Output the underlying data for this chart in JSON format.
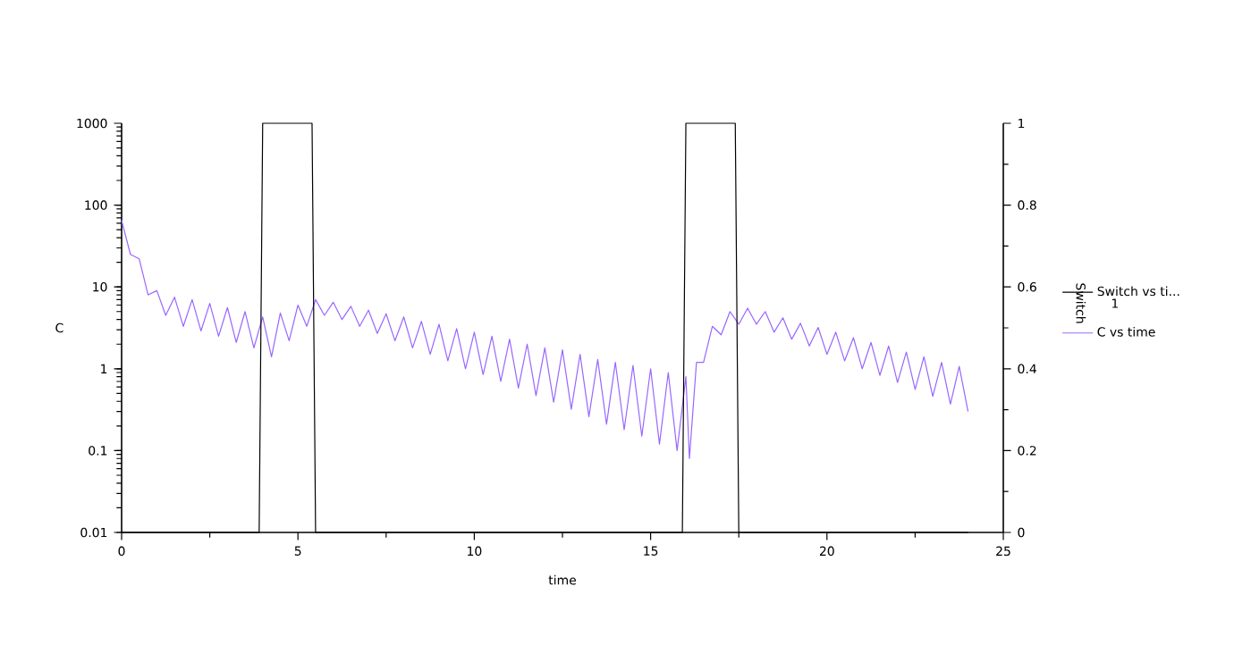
{
  "chart_data": {
    "type": "line",
    "xlabel": "time",
    "ylabel": "C",
    "y2label": "Switch",
    "annotations": [
      "1"
    ],
    "xlim": [
      0,
      25
    ],
    "xticks": [
      0,
      5,
      10,
      15,
      20,
      25
    ],
    "ylim": [
      0.01,
      1000
    ],
    "yticks": [
      0.01,
      0.1,
      1,
      10,
      100,
      1000
    ],
    "log": "y",
    "y2lim": [
      0,
      1
    ],
    "y2ticks": [
      0,
      0.2,
      0.4,
      0.6,
      0.8,
      1
    ],
    "legend": "right",
    "grid": false,
    "marker": "none",
    "line_style": "solid",
    "series": [
      {
        "name": "Switch vs ti...",
        "color": "#000000",
        "axis": "y2",
        "x": [
          0,
          3.9,
          4.0,
          5.4,
          5.5,
          15.9,
          16.0,
          17.4,
          17.5,
          24
        ],
        "values": [
          0,
          0,
          1,
          1,
          0,
          0,
          1,
          1,
          0,
          0
        ]
      },
      {
        "name": "C vs time",
        "color": "#9966ff",
        "x": [
          0,
          0.25,
          0.5,
          0.75,
          1,
          1.25,
          1.5,
          1.75,
          2,
          2.25,
          2.5,
          2.75,
          3,
          3.25,
          3.5,
          3.75,
          4,
          4.25,
          4.5,
          4.75,
          5,
          5.25,
          5.5,
          5.75,
          6,
          6.25,
          6.5,
          6.75,
          7,
          7.25,
          7.5,
          7.75,
          8,
          8.25,
          8.5,
          8.75,
          9,
          9.25,
          9.5,
          9.75,
          10,
          10.25,
          10.5,
          10.75,
          11,
          11.25,
          11.5,
          11.75,
          12,
          12.25,
          12.5,
          12.75,
          13,
          13.25,
          13.5,
          13.75,
          14,
          14.25,
          14.5,
          14.75,
          15,
          15.25,
          15.5,
          15.75,
          16,
          16.1,
          16.3,
          16.5,
          16.75,
          17,
          17.25,
          17.5,
          17.75,
          18,
          18.25,
          18.5,
          18.75,
          19,
          19.25,
          19.5,
          19.75,
          20,
          20.25,
          20.5,
          20.75,
          21,
          21.25,
          21.5,
          21.75,
          22,
          22.25,
          22.5,
          22.75,
          23,
          23.25,
          23.5,
          23.75,
          24
        ],
        "values": [
          65,
          25,
          22,
          8,
          9,
          4.5,
          7.5,
          3.3,
          7,
          2.9,
          6.3,
          2.5,
          5.6,
          2.1,
          5,
          1.8,
          4.3,
          1.4,
          4.8,
          2.2,
          6,
          3.3,
          7,
          4.5,
          6.5,
          4,
          5.8,
          3.3,
          5.2,
          2.7,
          4.7,
          2.2,
          4.3,
          1.8,
          3.8,
          1.5,
          3.5,
          1.25,
          3.1,
          1.0,
          2.8,
          0.85,
          2.5,
          0.7,
          2.3,
          0.58,
          2.0,
          0.47,
          1.8,
          0.39,
          1.7,
          0.32,
          1.5,
          0.26,
          1.3,
          0.21,
          1.2,
          0.18,
          1.1,
          0.15,
          1.0,
          0.12,
          0.9,
          0.1,
          0.8,
          0.08,
          1.2,
          1.2,
          3.3,
          2.6,
          5,
          3.5,
          5.5,
          3.5,
          5.0,
          2.8,
          4.2,
          2.3,
          3.6,
          1.9,
          3.2,
          1.5,
          2.8,
          1.25,
          2.4,
          1.0,
          2.1,
          0.83,
          1.9,
          0.68,
          1.6,
          0.56,
          1.4,
          0.46,
          1.2,
          0.37,
          1.07,
          0.3
        ]
      }
    ]
  }
}
